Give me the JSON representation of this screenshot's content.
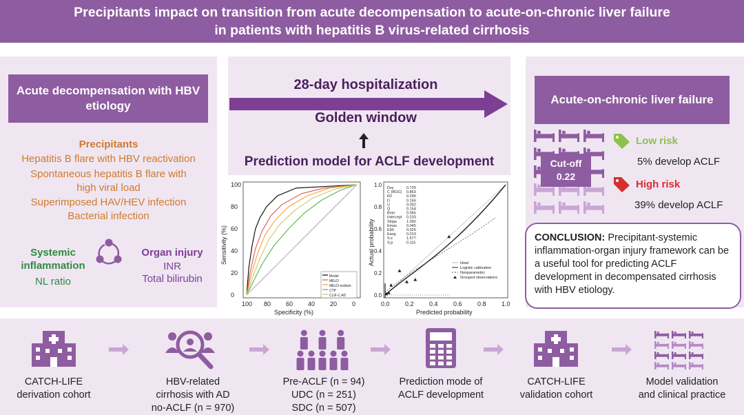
{
  "title_line1": "Precipitants impact on transition from acute decompensation to acute-on-chronic liver failure",
  "title_line2": "in patients with hepatitis B virus-related cirrhosis",
  "left": {
    "header": "Acute decompensation with HBV etiology",
    "precipitants_title": "Precipitants",
    "precipitants": [
      "Hepatitis B flare with HBV reactivation",
      "Spontaneous hepatitis B flare with high viral load",
      "Superimposed HAV/HEV infection",
      "Bacterial infection"
    ],
    "systemic_title": "Systemic inflammation",
    "systemic_item": "NL ratio",
    "organ_title": "Organ injury",
    "organ_items": [
      "INR",
      "Total bilirubin"
    ]
  },
  "middle": {
    "hospitalization": "28-day hospitalization",
    "golden_window": "Golden window",
    "model": "Prediction model for ACLF development"
  },
  "right": {
    "header": "Acute-on-chronic liver failure",
    "cutoff_label": "Cut-off",
    "cutoff_value": "0.22",
    "low_risk": "Low risk",
    "low_risk_text": "5% develop ACLF",
    "high_risk": "High risk",
    "high_risk_text": "39% develop ACLF",
    "conclusion_label": "CONCLUSION:",
    "conclusion_text": "Precipitant-systemic inflammation-organ injury framework can be a useful tool for predicting ACLF development in decompensated cirrhosis with HBV etiology."
  },
  "roc": {
    "ylabel": "Sensitivity (%)",
    "xlabel": "Specificity (%)",
    "x_ticks": [
      "100",
      "80",
      "60",
      "40",
      "20",
      "0"
    ],
    "y_ticks": [
      "100",
      "80",
      "60",
      "40",
      "20",
      "0"
    ],
    "legend": [
      "Model",
      "MELD",
      "MELD-sodium",
      "CTP",
      "CLIF-C AD"
    ],
    "colors": [
      "#000000",
      "#e0564f",
      "#f2a33a",
      "#5ab552",
      "#c9c96a"
    ]
  },
  "calibration": {
    "ylabel": "Actual probability",
    "xlabel": "Predicted probability",
    "x_ticks": [
      "0.0",
      "0.2",
      "0.4",
      "0.6",
      "0.8",
      "1.0"
    ],
    "y_ticks": [
      "1.0",
      "0.8",
      "0.6",
      "0.4",
      "0.2",
      "0.0"
    ],
    "stats": [
      [
        "Dxy",
        "0.725"
      ],
      [
        "C (ROC)",
        "0.863"
      ],
      [
        "R2",
        "0.296"
      ],
      [
        "D",
        "0.156"
      ],
      [
        "U",
        "0.002"
      ],
      [
        "Q",
        "0.154"
      ],
      [
        "Brier",
        "0.066"
      ],
      [
        "Intercept",
        "0.233"
      ],
      [
        "Slope",
        "1.092"
      ],
      [
        "Emax",
        "0.045"
      ],
      [
        "E90",
        "0.026"
      ],
      [
        "Eavg",
        "0.013"
      ],
      [
        "S:z",
        "1.577"
      ],
      [
        "S:p",
        "0.115"
      ]
    ],
    "legend": [
      "Ideal",
      "Logistic calibration",
      "Nonparametric",
      "Grouped observations"
    ]
  },
  "bottom": [
    "CATCH-LIFE\nderivation cohort",
    "HBV-related\ncirrhosis with AD\nno-ACLF (n = 970)",
    "Pre-ACLF (n = 94)\nUDC (n = 251)\nSDC (n = 507)",
    "Prediction mode of\nACLF development",
    "CATCH-LIFE\nvalidation cohort",
    "Model validation\nand clinical practice"
  ]
}
